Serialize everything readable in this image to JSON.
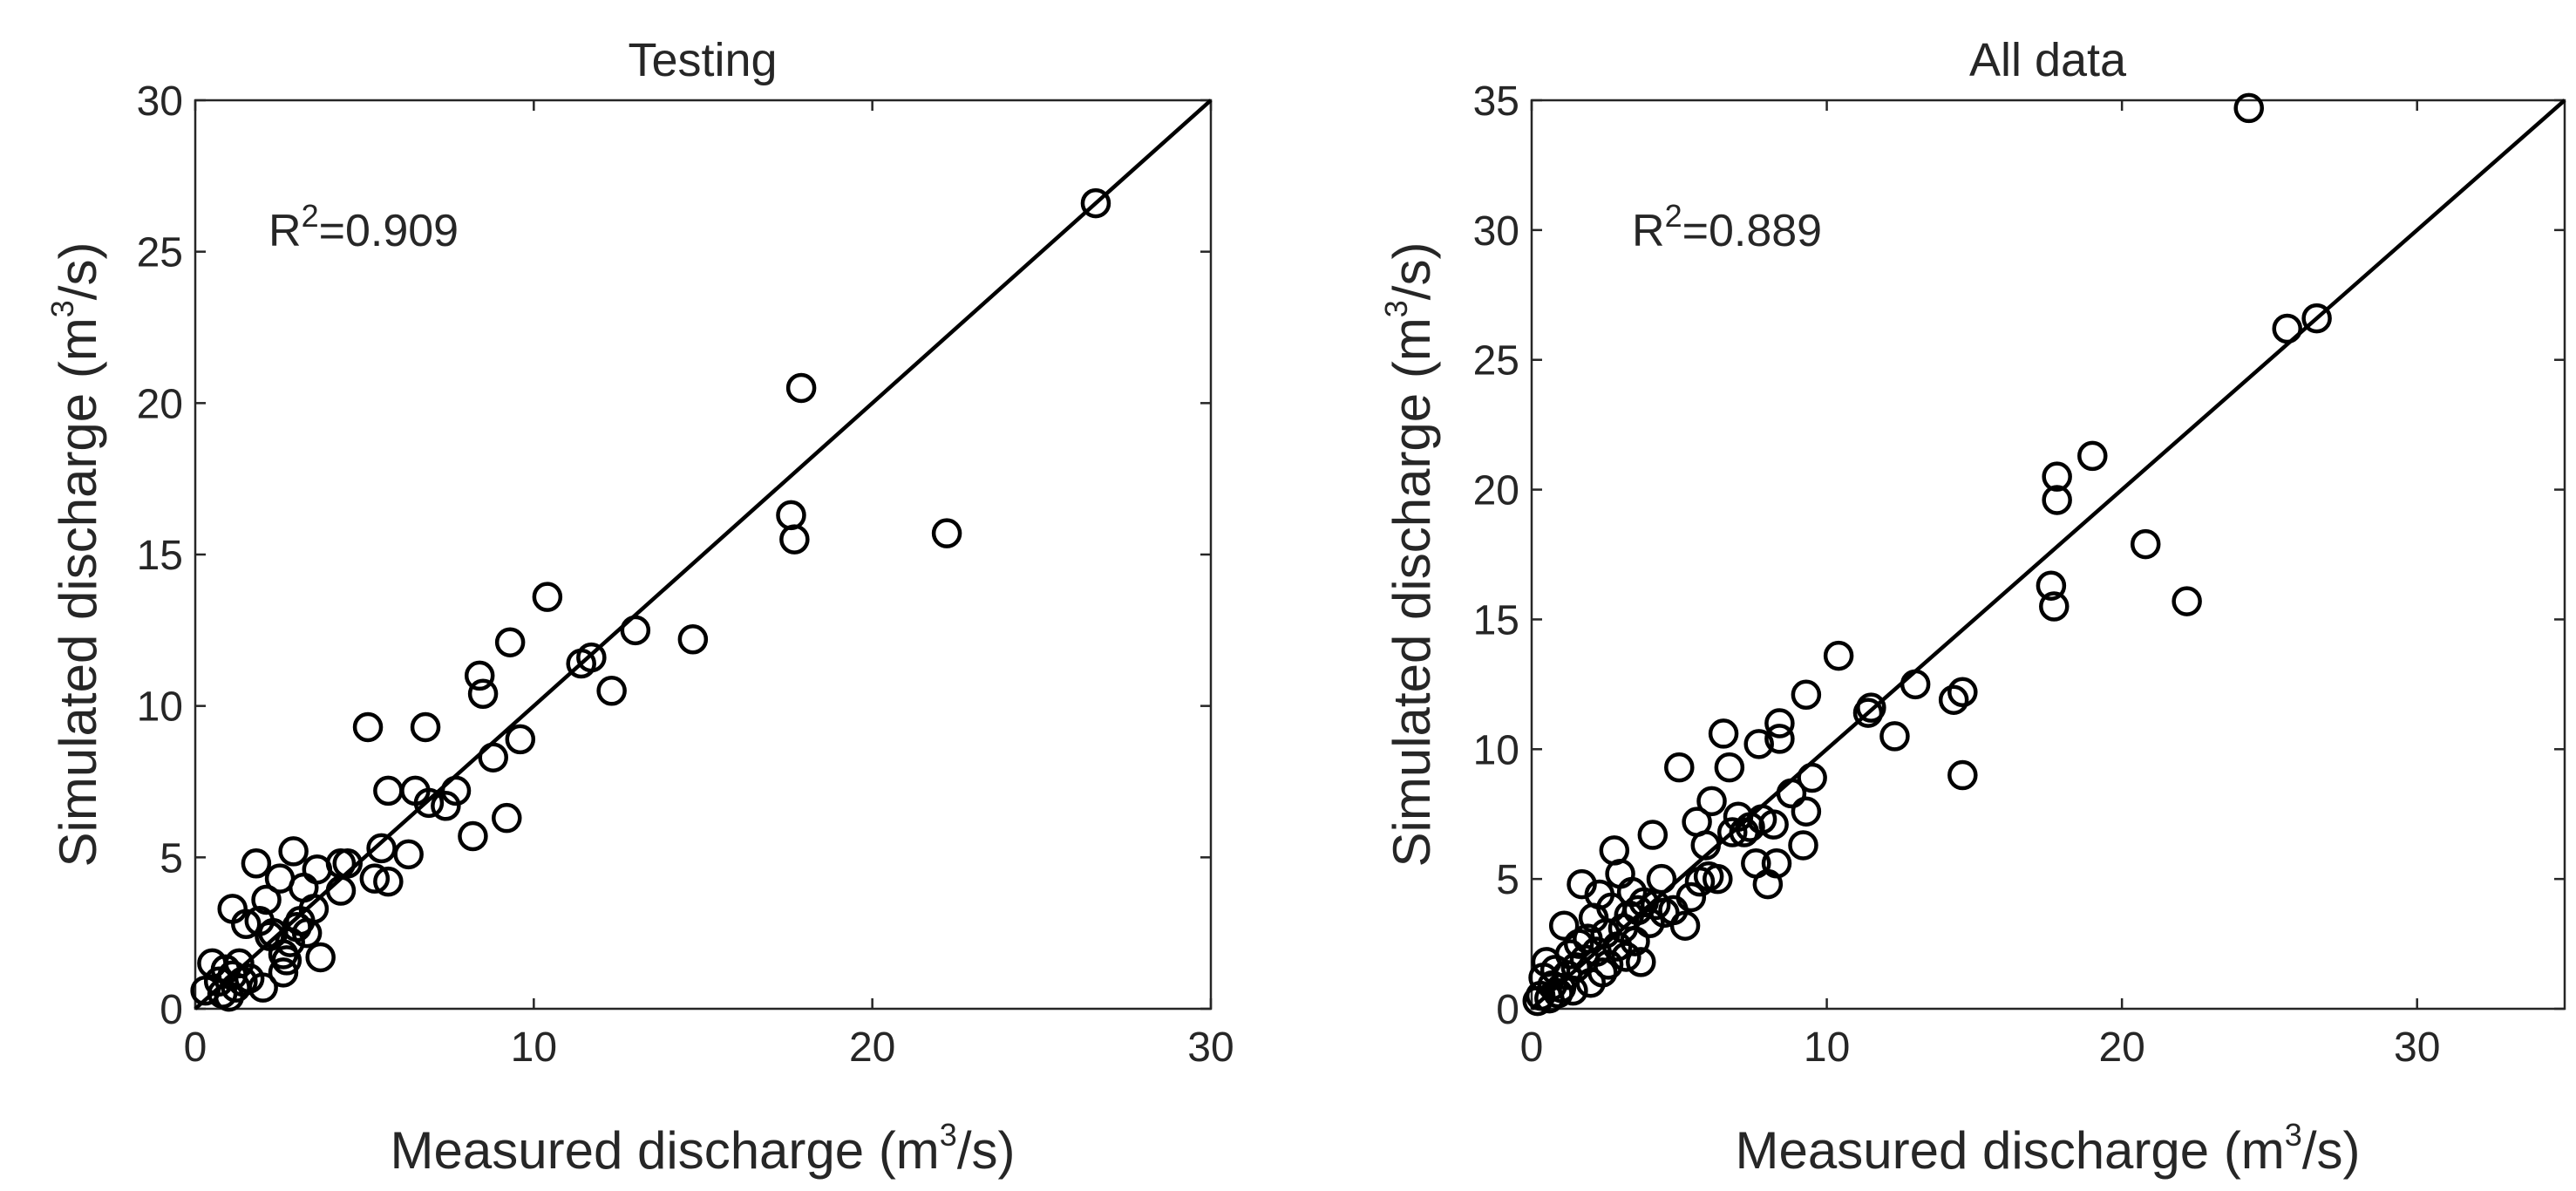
{
  "chart_data": [
    {
      "type": "scatter",
      "title": "Testing",
      "xlabel_main": "Measured discharge (m",
      "xlabel_sup": "3",
      "xlabel_end": "/s)",
      "ylabel_main": "Simulated discharge (m",
      "ylabel_sup": "3",
      "ylabel_end": "/s)",
      "annotation_main": "R",
      "annotation_sup": "2",
      "annotation_end": "=0.909",
      "xlim": [
        0,
        30
      ],
      "ylim": [
        0,
        30
      ],
      "xticks": [
        0,
        10,
        20,
        30
      ],
      "yticks": [
        0,
        5,
        10,
        15,
        20,
        25,
        30
      ],
      "grid": false,
      "line": [
        [
          0,
          0
        ],
        [
          30,
          30
        ]
      ],
      "points": [
        [
          0.3,
          0.6
        ],
        [
          0.5,
          1.5
        ],
        [
          0.7,
          0.9
        ],
        [
          0.8,
          0.5
        ],
        [
          0.9,
          1.3
        ],
        [
          1.0,
          0.4
        ],
        [
          1.1,
          1.1
        ],
        [
          1.1,
          3.3
        ],
        [
          1.2,
          0.7
        ],
        [
          1.3,
          1.5
        ],
        [
          1.4,
          0.9
        ],
        [
          1.5,
          2.8
        ],
        [
          1.6,
          1.0
        ],
        [
          1.8,
          4.8
        ],
        [
          1.9,
          2.9
        ],
        [
          2.0,
          0.7
        ],
        [
          2.1,
          3.6
        ],
        [
          2.2,
          2.4
        ],
        [
          2.3,
          2.5
        ],
        [
          2.5,
          4.3
        ],
        [
          2.6,
          1.2
        ],
        [
          2.6,
          1.8
        ],
        [
          2.7,
          1.6
        ],
        [
          2.8,
          2.2
        ],
        [
          2.9,
          5.2
        ],
        [
          3.0,
          2.7
        ],
        [
          3.1,
          2.9
        ],
        [
          3.2,
          4.0
        ],
        [
          3.3,
          2.5
        ],
        [
          3.5,
          3.3
        ],
        [
          3.6,
          4.6
        ],
        [
          3.7,
          1.7
        ],
        [
          4.3,
          3.9
        ],
        [
          4.3,
          4.8
        ],
        [
          4.5,
          4.8
        ],
        [
          5.1,
          9.3
        ],
        [
          5.3,
          4.3
        ],
        [
          5.5,
          5.3
        ],
        [
          5.7,
          7.2
        ],
        [
          5.7,
          4.2
        ],
        [
          6.3,
          5.1
        ],
        [
          6.5,
          7.2
        ],
        [
          6.8,
          9.3
        ],
        [
          6.9,
          6.8
        ],
        [
          7.4,
          6.7
        ],
        [
          7.7,
          7.2
        ],
        [
          8.2,
          5.7
        ],
        [
          8.4,
          11.0
        ],
        [
          8.5,
          10.4
        ],
        [
          8.8,
          8.3
        ],
        [
          9.2,
          6.3
        ],
        [
          9.3,
          12.1
        ],
        [
          9.6,
          8.9
        ],
        [
          10.4,
          13.6
        ],
        [
          11.4,
          11.4
        ],
        [
          11.7,
          11.6
        ],
        [
          12.3,
          10.5
        ],
        [
          13.0,
          12.5
        ],
        [
          14.7,
          12.2
        ],
        [
          17.6,
          16.3
        ],
        [
          17.7,
          15.5
        ],
        [
          17.9,
          20.5
        ],
        [
          22.2,
          15.7
        ],
        [
          26.6,
          26.6
        ]
      ]
    },
    {
      "type": "scatter",
      "title": "All data",
      "xlabel_main": "Measured discharge (m",
      "xlabel_sup": "3",
      "xlabel_end": "/s)",
      "ylabel_main": "Simulated discharge (m",
      "ylabel_sup": "3",
      "ylabel_end": "/s)",
      "annotation_main": "R",
      "annotation_sup": "2",
      "annotation_end": "=0.889",
      "xlim": [
        0,
        35
      ],
      "ylim": [
        0,
        35
      ],
      "xticks": [
        0,
        10,
        20,
        30
      ],
      "yticks": [
        0,
        5,
        10,
        15,
        20,
        25,
        30,
        35
      ],
      "grid": false,
      "line": [
        [
          0,
          0
        ],
        [
          35,
          35
        ]
      ],
      "points": [
        [
          0.2,
          0.3
        ],
        [
          0.3,
          0.5
        ],
        [
          0.4,
          1.2
        ],
        [
          0.5,
          1.8
        ],
        [
          0.6,
          0.4
        ],
        [
          0.7,
          0.9
        ],
        [
          0.8,
          1.5
        ],
        [
          0.9,
          0.6
        ],
        [
          1.0,
          0.8
        ],
        [
          1.1,
          3.2
        ],
        [
          1.2,
          1.3
        ],
        [
          1.3,
          2.1
        ],
        [
          1.4,
          0.7
        ],
        [
          1.5,
          1.6
        ],
        [
          1.6,
          2.5
        ],
        [
          1.7,
          4.8
        ],
        [
          1.8,
          1.9
        ],
        [
          1.9,
          2.7
        ],
        [
          2.0,
          1.0
        ],
        [
          2.1,
          3.5
        ],
        [
          2.2,
          2.2
        ],
        [
          2.3,
          4.4
        ],
        [
          2.4,
          1.4
        ],
        [
          2.5,
          2.9
        ],
        [
          2.6,
          1.7
        ],
        [
          2.7,
          3.9
        ],
        [
          2.8,
          6.1
        ],
        [
          2.9,
          2.4
        ],
        [
          3.0,
          5.2
        ],
        [
          3.1,
          3.1
        ],
        [
          3.2,
          2.0
        ],
        [
          3.3,
          3.6
        ],
        [
          3.4,
          4.5
        ],
        [
          3.5,
          2.6
        ],
        [
          3.6,
          3.8
        ],
        [
          3.7,
          1.8
        ],
        [
          3.8,
          4.1
        ],
        [
          4.0,
          3.3
        ],
        [
          4.1,
          6.7
        ],
        [
          4.2,
          4.0
        ],
        [
          4.4,
          5.0
        ],
        [
          4.5,
          3.7
        ],
        [
          4.8,
          3.8
        ],
        [
          5.0,
          9.3
        ],
        [
          5.2,
          3.2
        ],
        [
          5.4,
          4.3
        ],
        [
          5.6,
          7.2
        ],
        [
          5.7,
          4.9
        ],
        [
          5.9,
          6.3
        ],
        [
          6.0,
          5.1
        ],
        [
          6.1,
          8.0
        ],
        [
          6.3,
          5.0
        ],
        [
          6.5,
          10.6
        ],
        [
          6.7,
          9.3
        ],
        [
          6.8,
          6.8
        ],
        [
          7.0,
          7.4
        ],
        [
          7.2,
          6.8
        ],
        [
          7.4,
          7.0
        ],
        [
          7.6,
          5.6
        ],
        [
          7.7,
          10.2
        ],
        [
          7.8,
          7.3
        ],
        [
          8.0,
          4.8
        ],
        [
          8.2,
          7.1
        ],
        [
          8.3,
          5.6
        ],
        [
          8.4,
          10.4
        ],
        [
          8.4,
          11.0
        ],
        [
          8.8,
          8.3
        ],
        [
          9.2,
          6.3
        ],
        [
          9.3,
          7.6
        ],
        [
          9.3,
          12.1
        ],
        [
          9.5,
          8.9
        ],
        [
          10.4,
          13.6
        ],
        [
          11.4,
          11.4
        ],
        [
          11.5,
          11.6
        ],
        [
          12.3,
          10.5
        ],
        [
          13.0,
          12.5
        ],
        [
          14.3,
          11.9
        ],
        [
          14.6,
          12.2
        ],
        [
          14.6,
          9.0
        ],
        [
          17.6,
          16.3
        ],
        [
          17.7,
          15.5
        ],
        [
          17.8,
          20.5
        ],
        [
          17.8,
          19.6
        ],
        [
          19.0,
          21.3
        ],
        [
          20.8,
          17.9
        ],
        [
          22.2,
          15.7
        ],
        [
          24.3,
          34.7
        ],
        [
          25.6,
          26.2
        ],
        [
          26.6,
          26.6
        ]
      ]
    }
  ]
}
